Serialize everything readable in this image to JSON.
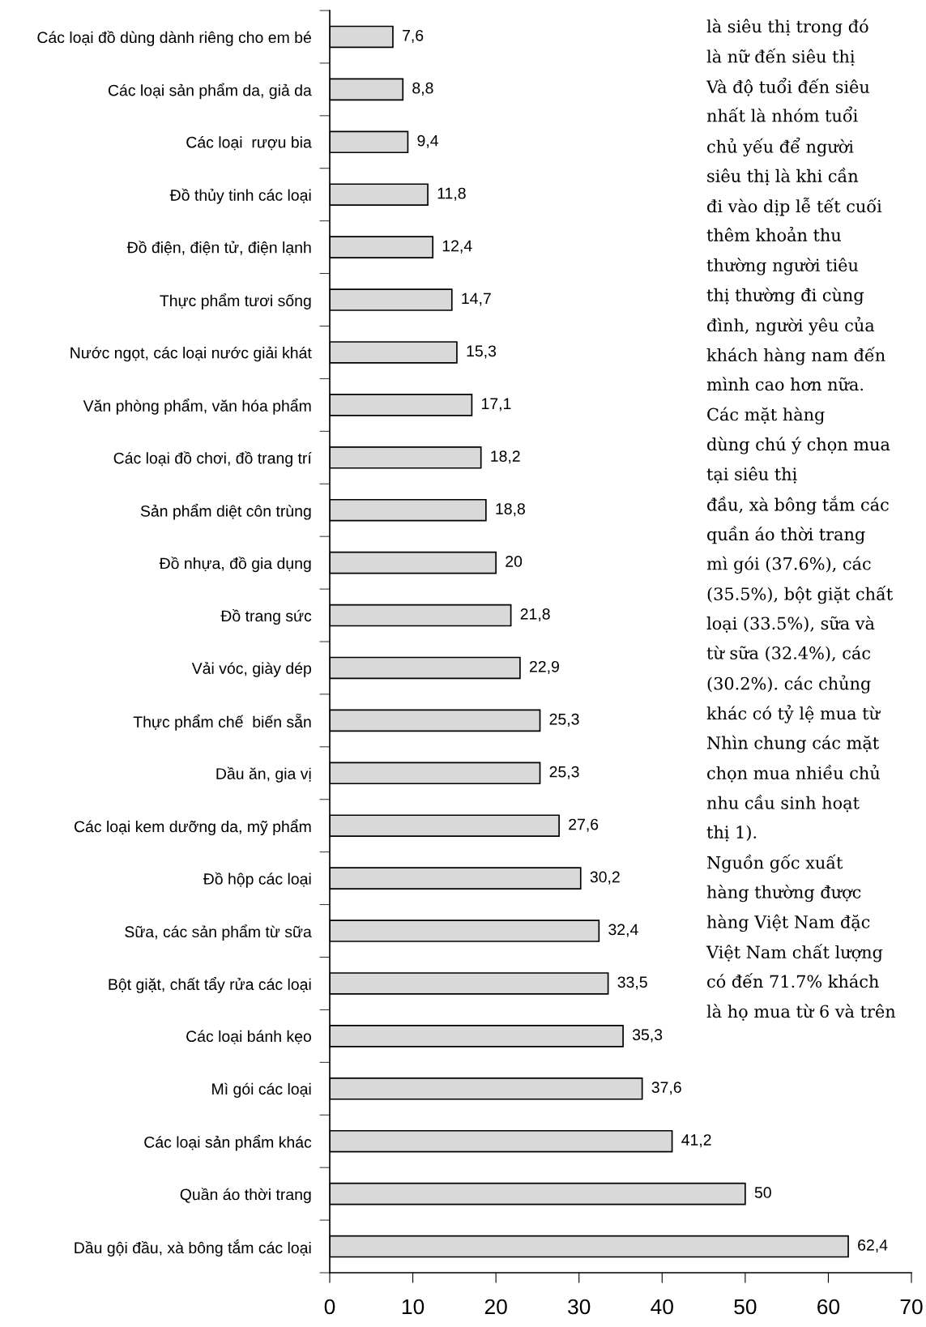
{
  "chart_data": {
    "type": "bar",
    "orientation": "horizontal",
    "categories": [
      "Các loại đồ dùng dành riêng cho em bé",
      "Các loại sản phẩm da, giả da",
      "Các loại  rượu bia",
      "Đồ thủy tinh các loại",
      "Đồ điện, điện tử, điện lạnh",
      "Thực phẩm tươi sống",
      "Nước ngọt, các loại nước giải khát",
      "Văn phòng phẩm, văn hóa phẩm",
      "Các loại đồ chơi, đồ trang trí",
      "Sản phẩm diệt côn trùng",
      "Đồ nhựa, đồ gia dụng",
      "Đồ trang sức",
      "Vải vóc, giày dép",
      "Thực phẩm chế  biến sẵn",
      "Dầu ăn, gia vị",
      "Các loại kem dưỡng da, mỹ phẩm",
      "Đồ hộp các loại",
      "Sữa, các sản phẩm từ sữa",
      "Bột giặt, chất tẩy rửa các loại",
      "Các loại bánh kẹo",
      "Mì gói các loại",
      "Các loại sản phẩm khác",
      "Quần áo thời trang",
      "Dầu gội đầu, xà bông tắm các loại"
    ],
    "values": [
      7.6,
      8.8,
      9.4,
      11.8,
      12.4,
      14.7,
      15.3,
      17.1,
      18.2,
      18.8,
      20,
      21.8,
      22.9,
      25.3,
      25.3,
      27.6,
      30.2,
      32.4,
      33.5,
      35.3,
      37.6,
      41.2,
      50,
      62.4
    ],
    "value_labels": [
      "7,6",
      "8,8",
      "9,4",
      "11,8",
      "12,4",
      "14,7",
      "15,3",
      "17,1",
      "18,2",
      "18,8",
      "20",
      "21,8",
      "22,9",
      "25,3",
      "25,3",
      "27,6",
      "30,2",
      "32,4",
      "33,5",
      "35,3",
      "37,6",
      "41,2",
      "50",
      "62,4"
    ],
    "color": "#d9d9d9",
    "xlim": [
      0,
      70
    ],
    "xticks": [
      0,
      10,
      20,
      30,
      40,
      50,
      60,
      70
    ],
    "grid": false,
    "legend": false,
    "annotations": [
      "là siêu thị trong đó",
      "là nữ đến siêu thị",
      "Và độ tuổi đến siêu",
      "nhất là nhóm tuổi",
      "chủ yếu để người",
      "siêu thị là khi cần",
      "đi vào dịp lễ tết cuối",
      "thêm khoản thu",
      "thường người tiêu",
      "thị thường đi cùng",
      "đình, người yêu của",
      "khách hàng nam đến",
      "mình cao hơn nữa.",
      "Các mặt hàng",
      "dùng chú ý chọn mua",
      "tại siêu thị",
      "đầu, xà bông tắm các",
      "quần áo thời trang",
      "mì gói (37.6%), các",
      "(35.5%), bột giặt chất",
      "loại (33.5%), sữa và",
      "từ sữa (32.4%), các",
      "(30.2%). các chủng",
      "khác có tỷ lệ mua từ",
      "Nhìn chung các mặt",
      "chọn mua nhiều chủ",
      "nhu cầu sinh hoạt",
      "thị 1).",
      "Nguồn gốc xuất",
      "hàng thường được",
      "hàng Việt Nam đặc",
      "Việt Nam chất lượng",
      "có đến 71.7% khách",
      "là họ mua từ 6 và trên"
    ]
  }
}
